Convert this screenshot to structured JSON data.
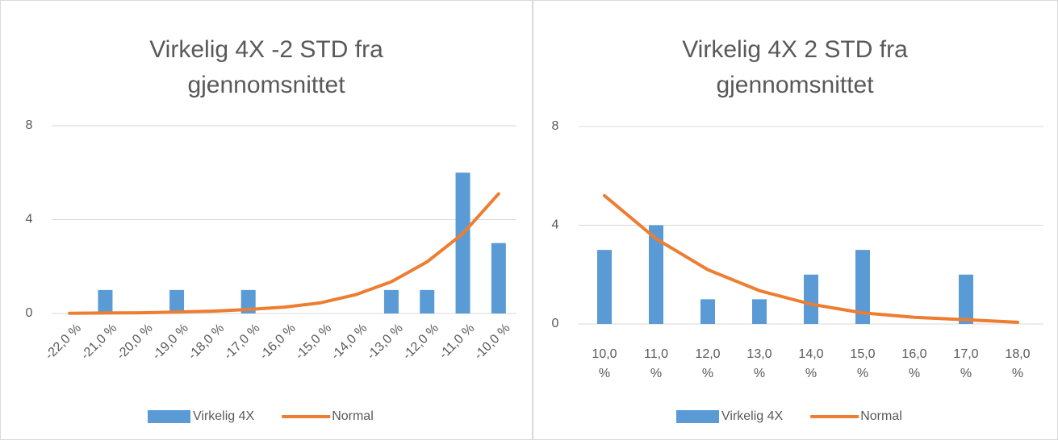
{
  "chart_data": [
    {
      "type": "bar",
      "title": "Virkelig 4X -2 STD fra gjennomsnittet",
      "categories": [
        "-22,0 %",
        "-21,0 %",
        "-20,0 %",
        "-19,0 %",
        "-18,0 %",
        "-17,0 %",
        "-16,0 %",
        "-15,0 %",
        "-14,0 %",
        "-13,0 %",
        "-12,0 %",
        "-11,0 %",
        "-10,0 %"
      ],
      "series": [
        {
          "name": "Virkelig 4X",
          "type": "bar",
          "color": "#5b9bd5",
          "values": [
            0,
            1,
            0,
            1,
            0,
            1,
            0,
            0,
            0,
            1,
            1,
            6,
            3
          ]
        },
        {
          "name": "Normal",
          "type": "line",
          "color": "#ed7d31",
          "values": [
            0.01,
            0.02,
            0.03,
            0.06,
            0.1,
            0.17,
            0.27,
            0.45,
            0.8,
            1.35,
            2.2,
            3.4,
            5.1
          ]
        }
      ],
      "ylim": [
        0,
        8
      ],
      "yticks": [
        0,
        4,
        8
      ],
      "grid": true,
      "legend": "bottom"
    },
    {
      "type": "bar",
      "title": "Virkelig 4X 2 STD fra gjennomsnittet",
      "categories": [
        "10,0 %",
        "11,0 %",
        "12,0 %",
        "13,0 %",
        "14,0 %",
        "15,0 %",
        "16,0 %",
        "17,0 %",
        "18,0 %"
      ],
      "series": [
        {
          "name": "Virkelig 4X",
          "type": "bar",
          "color": "#5b9bd5",
          "values": [
            3,
            4,
            1,
            1,
            2,
            3,
            0,
            2,
            0
          ]
        },
        {
          "name": "Normal",
          "type": "line",
          "color": "#ed7d31",
          "values": [
            5.2,
            3.45,
            2.2,
            1.35,
            0.8,
            0.45,
            0.27,
            0.17,
            0.07
          ]
        }
      ],
      "ylim": [
        0,
        8
      ],
      "yticks": [
        0,
        4,
        8
      ],
      "grid": true,
      "legend": "bottom"
    }
  ]
}
